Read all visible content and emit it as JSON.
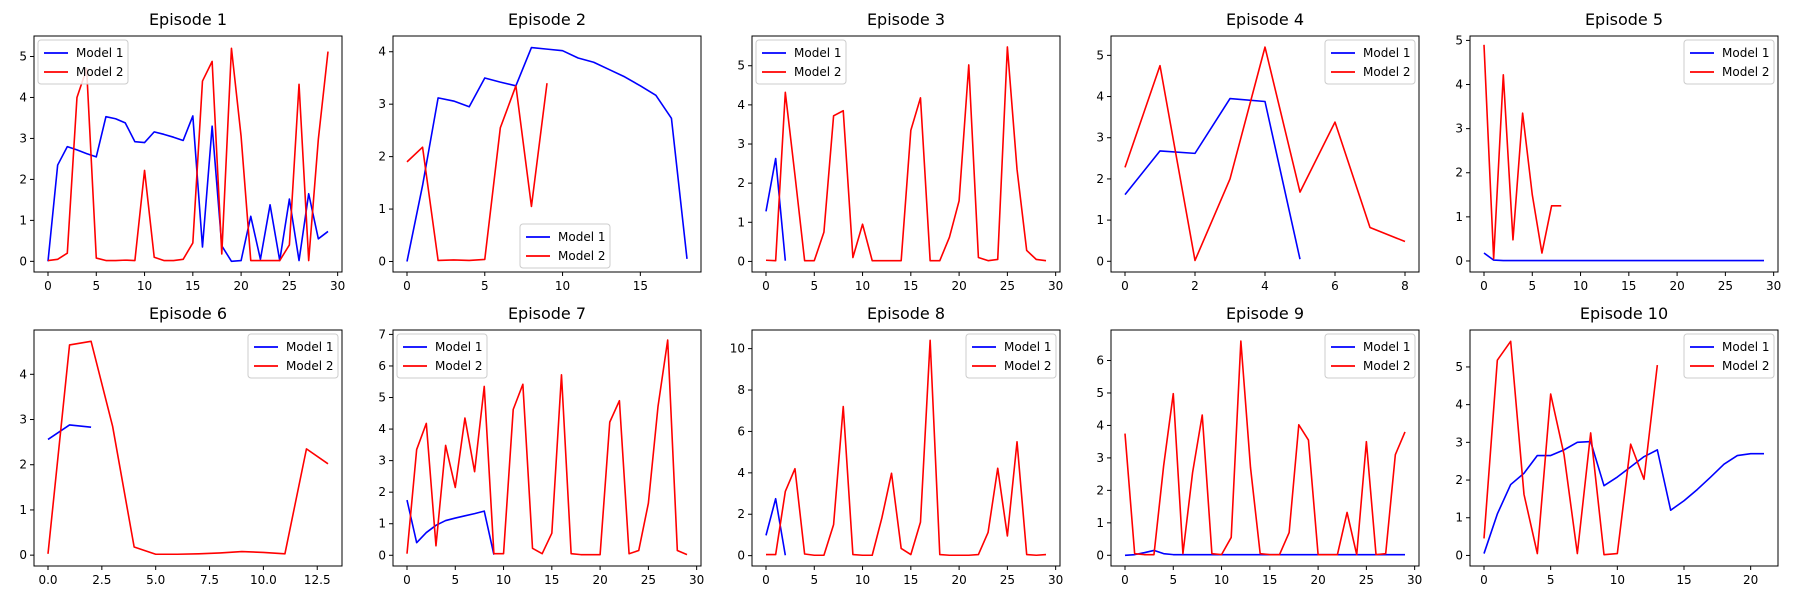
{
  "chart_data": [
    {
      "type": "line",
      "title": "Episode 1",
      "xlabel": "",
      "ylabel": "",
      "xlim": [
        -1.45,
        30.45
      ],
      "ylim": [
        -0.26,
        5.5
      ],
      "xticks": [
        0,
        5,
        10,
        15,
        20,
        25,
        30
      ],
      "yticks": [
        0,
        1,
        2,
        3,
        4,
        5
      ],
      "legend": "upper left",
      "grid": false,
      "series": [
        {
          "name": "Model 1",
          "color": "#0000ff",
          "x": [
            0,
            1,
            2,
            3,
            4,
            5,
            6,
            7,
            8,
            9,
            10,
            11,
            12,
            13,
            14,
            15,
            16,
            17,
            18,
            19,
            20,
            21,
            22,
            23,
            24,
            25,
            26,
            27,
            28,
            29
          ],
          "y": [
            0,
            2.35,
            2.8,
            2.72,
            2.63,
            2.55,
            3.53,
            3.48,
            3.38,
            2.92,
            2.9,
            3.16,
            3.1,
            3.03,
            2.95,
            3.55,
            0.35,
            3.3,
            0.38,
            0,
            0.02,
            1.1,
            0.05,
            1.38,
            0.02,
            1.52,
            0.02,
            1.65,
            0.55,
            0.73
          ]
        },
        {
          "name": "Model 2",
          "color": "#ff0000",
          "x": [
            0,
            1,
            2,
            3,
            4,
            5,
            6,
            7,
            8,
            9,
            10,
            11,
            12,
            13,
            14,
            15,
            16,
            17,
            18,
            19,
            20,
            21,
            22,
            23,
            24,
            25,
            26,
            27,
            28,
            29
          ],
          "y": [
            0.02,
            0.05,
            0.2,
            4,
            4.7,
            0.08,
            0.02,
            0.02,
            0.03,
            0.02,
            2.22,
            0.1,
            0.02,
            0.02,
            0.05,
            0.45,
            4.4,
            4.88,
            0.18,
            5.2,
            3.05,
            0.02,
            0.02,
            0.02,
            0.02,
            0.4,
            4.32,
            0.02,
            2.98,
            5.12
          ]
        }
      ]
    },
    {
      "type": "line",
      "title": "Episode 2",
      "xlabel": "",
      "ylabel": "",
      "xlim": [
        -0.9,
        18.9
      ],
      "ylim": [
        -0.2,
        4.3
      ],
      "xticks": [
        0,
        5,
        10,
        15
      ],
      "yticks": [
        0,
        1,
        2,
        3,
        4
      ],
      "legend": "lower center",
      "grid": false,
      "series": [
        {
          "name": "Model 1",
          "color": "#0000ff",
          "x": [
            0,
            1,
            2,
            3,
            4,
            5,
            6,
            7,
            8,
            9,
            10,
            11,
            12,
            13,
            14,
            15,
            16,
            17,
            18
          ],
          "y": [
            0,
            1.45,
            3.12,
            3.06,
            2.95,
            3.5,
            3.42,
            3.35,
            4.08,
            4.05,
            4.02,
            3.88,
            3.8,
            3.66,
            3.52,
            3.35,
            3.17,
            2.73,
            0.05
          ]
        },
        {
          "name": "Model 2",
          "color": "#ff0000",
          "x": [
            0,
            1,
            2,
            3,
            4,
            5,
            6,
            7,
            8,
            9
          ],
          "y": [
            1.9,
            2.18,
            0.02,
            0.03,
            0.02,
            0.04,
            2.55,
            3.35,
            1.05,
            3.4
          ]
        }
      ]
    },
    {
      "type": "line",
      "title": "Episode 3",
      "xlabel": "",
      "ylabel": "",
      "xlim": [
        -1.45,
        30.45
      ],
      "ylim": [
        -0.27,
        5.76
      ],
      "xticks": [
        0,
        5,
        10,
        15,
        20,
        25,
        30
      ],
      "yticks": [
        0,
        1,
        2,
        3,
        4,
        5
      ],
      "legend": "upper left",
      "grid": false,
      "series": [
        {
          "name": "Model 1",
          "color": "#0000ff",
          "x": [
            0,
            1,
            2
          ],
          "y": [
            1.28,
            2.63,
            0.02
          ]
        },
        {
          "name": "Model 2",
          "color": "#ff0000",
          "x": [
            0,
            1,
            2,
            3,
            4,
            5,
            6,
            7,
            8,
            9,
            10,
            11,
            12,
            13,
            14,
            15,
            16,
            17,
            18,
            19,
            20,
            21,
            22,
            23,
            24,
            25,
            26,
            27,
            28,
            29
          ],
          "y": [
            0.03,
            0.02,
            4.32,
            2.2,
            0.02,
            0.02,
            0.75,
            3.72,
            3.85,
            0.1,
            0.95,
            0.02,
            0.02,
            0.02,
            0.02,
            3.35,
            4.18,
            0.02,
            0.02,
            0.62,
            1.55,
            5.02,
            0.1,
            0.02,
            0.05,
            5.48,
            2.35,
            0.28,
            0.05,
            0.02
          ]
        }
      ]
    },
    {
      "type": "line",
      "title": "Episode 4",
      "xlabel": "",
      "ylabel": "",
      "xlim": [
        -0.4,
        8.4
      ],
      "ylim": [
        -0.26,
        5.47
      ],
      "xticks": [
        0,
        2,
        4,
        6,
        8
      ],
      "yticks": [
        0,
        1,
        2,
        3,
        4,
        5
      ],
      "legend": "upper right",
      "grid": false,
      "series": [
        {
          "name": "Model 1",
          "color": "#0000ff",
          "x": [
            0,
            1,
            2,
            3,
            4,
            5
          ],
          "y": [
            1.62,
            2.68,
            2.62,
            3.95,
            3.88,
            0.05
          ]
        },
        {
          "name": "Model 2",
          "color": "#ff0000",
          "x": [
            0,
            1,
            2,
            3,
            4,
            5,
            6,
            7,
            8
          ],
          "y": [
            2.28,
            4.75,
            0.02,
            2.0,
            5.2,
            1.68,
            3.38,
            0.82,
            0.48
          ]
        }
      ]
    },
    {
      "type": "line",
      "title": "Episode 5",
      "xlabel": "",
      "ylabel": "",
      "xlim": [
        -1.45,
        30.45
      ],
      "ylim": [
        -0.25,
        5.1
      ],
      "xticks": [
        0,
        5,
        10,
        15,
        20,
        25,
        30
      ],
      "yticks": [
        0,
        1,
        2,
        3,
        4,
        5
      ],
      "legend": "upper right",
      "grid": false,
      "series": [
        {
          "name": "Model 1",
          "color": "#0000ff",
          "x": [
            0,
            1,
            2,
            3,
            4,
            5,
            6,
            7,
            8,
            9,
            10,
            11,
            12,
            13,
            14,
            15,
            16,
            17,
            18,
            19,
            20,
            21,
            22,
            23,
            24,
            25,
            26,
            27,
            28,
            29
          ],
          "y": [
            0.18,
            0.02,
            0.01,
            0.01,
            0.01,
            0.01,
            0.01,
            0.01,
            0.01,
            0.01,
            0.01,
            0.01,
            0.01,
            0.01,
            0.01,
            0.01,
            0.01,
            0.01,
            0.01,
            0.01,
            0.01,
            0.01,
            0.01,
            0.01,
            0.01,
            0.01,
            0.01,
            0.01,
            0.01,
            0.01
          ]
        },
        {
          "name": "Model 2",
          "color": "#ff0000",
          "x": [
            0,
            1,
            2,
            3,
            4,
            5,
            6,
            7,
            8
          ],
          "y": [
            4.9,
            0.05,
            4.22,
            0.48,
            3.35,
            1.5,
            0.18,
            1.25,
            1.25
          ]
        }
      ]
    },
    {
      "type": "line",
      "title": "Episode 6",
      "xlabel": "",
      "ylabel": "",
      "xlim": [
        -0.65,
        13.65
      ],
      "ylim": [
        -0.24,
        4.98
      ],
      "xticks": [
        0.0,
        2.5,
        5.0,
        7.5,
        10.0,
        12.5
      ],
      "yticks": [
        0,
        1,
        2,
        3,
        4
      ],
      "legend": "upper right",
      "grid": false,
      "series": [
        {
          "name": "Model 1",
          "color": "#0000ff",
          "x": [
            0,
            1,
            2
          ],
          "y": [
            2.56,
            2.88,
            2.83
          ]
        },
        {
          "name": "Model 2",
          "color": "#ff0000",
          "x": [
            0,
            1,
            2,
            3,
            4,
            5,
            6,
            7,
            8,
            9,
            10,
            11,
            12,
            13
          ],
          "y": [
            0.03,
            4.65,
            4.73,
            2.85,
            0.18,
            0.02,
            0.02,
            0.03,
            0.05,
            0.08,
            0.06,
            0.03,
            2.35,
            2.02
          ]
        }
      ]
    },
    {
      "type": "line",
      "title": "Episode 7",
      "xlabel": "",
      "ylabel": "",
      "xlim": [
        -1.45,
        30.45
      ],
      "ylim": [
        -0.34,
        7.14
      ],
      "xticks": [
        0,
        5,
        10,
        15,
        20,
        25,
        30
      ],
      "yticks": [
        0,
        1,
        2,
        3,
        4,
        5,
        6,
        7
      ],
      "legend": "upper left",
      "grid": false,
      "series": [
        {
          "name": "Model 1",
          "color": "#0000ff",
          "x": [
            0,
            1,
            2,
            3,
            4,
            5,
            6,
            7,
            8,
            9
          ],
          "y": [
            1.75,
            0.4,
            0.72,
            0.95,
            1.1,
            1.18,
            1.25,
            1.32,
            1.4,
            0.02
          ]
        },
        {
          "name": "Model 2",
          "color": "#ff0000",
          "x": [
            0,
            1,
            2,
            3,
            4,
            5,
            6,
            7,
            8,
            9,
            10,
            11,
            12,
            13,
            14,
            15,
            16,
            17,
            18,
            19,
            20,
            21,
            22,
            23,
            24,
            25,
            26,
            27,
            28,
            29
          ],
          "y": [
            0.05,
            3.35,
            4.18,
            0.3,
            3.48,
            2.15,
            4.35,
            2.65,
            5.35,
            0.05,
            0.05,
            4.62,
            5.42,
            0.22,
            0.05,
            0.7,
            5.72,
            0.05,
            0.02,
            0.02,
            0.02,
            4.22,
            4.9,
            0.05,
            0.15,
            1.65,
            4.72,
            6.82,
            0.15,
            0.02
          ]
        }
      ]
    },
    {
      "type": "line",
      "title": "Episode 8",
      "xlabel": "",
      "ylabel": "",
      "xlim": [
        -1.45,
        30.45
      ],
      "ylim": [
        -0.5,
        10.9
      ],
      "xticks": [
        0,
        5,
        10,
        15,
        20,
        25,
        30
      ],
      "yticks": [
        0,
        2,
        4,
        6,
        8,
        10
      ],
      "legend": "upper right",
      "grid": false,
      "series": [
        {
          "name": "Model 1",
          "color": "#0000ff",
          "x": [
            0,
            1,
            2
          ],
          "y": [
            0.98,
            2.75,
            0.02
          ]
        },
        {
          "name": "Model 2",
          "color": "#ff0000",
          "x": [
            0,
            1,
            2,
            3,
            4,
            5,
            6,
            7,
            8,
            9,
            10,
            11,
            12,
            13,
            14,
            15,
            16,
            17,
            18,
            19,
            20,
            21,
            22,
            23,
            24,
            25,
            26,
            27,
            28,
            29
          ],
          "y": [
            0.05,
            0.05,
            3.1,
            4.2,
            0.08,
            0.02,
            0.02,
            1.5,
            7.2,
            0.05,
            0.02,
            0.02,
            1.82,
            3.98,
            0.35,
            0.05,
            1.62,
            10.4,
            0.05,
            0.02,
            0.02,
            0.02,
            0.05,
            1.12,
            4.22,
            0.95,
            5.5,
            0.05,
            0.02,
            0.05
          ]
        }
      ]
    },
    {
      "type": "line",
      "title": "Episode 9",
      "xlabel": "",
      "ylabel": "",
      "xlim": [
        -1.45,
        30.45
      ],
      "ylim": [
        -0.33,
        6.94
      ],
      "xticks": [
        0,
        5,
        10,
        15,
        20,
        25,
        30
      ],
      "yticks": [
        0,
        1,
        2,
        3,
        4,
        5,
        6
      ],
      "legend": "upper right",
      "grid": false,
      "series": [
        {
          "name": "Model 1",
          "color": "#0000ff",
          "x": [
            0,
            1,
            2,
            3,
            4,
            5,
            6,
            7,
            8,
            9,
            10,
            11,
            12,
            13,
            14,
            15,
            16,
            17,
            18,
            19,
            20,
            21,
            22,
            23,
            24,
            25,
            26,
            27,
            28,
            29
          ],
          "y": [
            0,
            0.02,
            0.08,
            0.15,
            0.05,
            0.02,
            0.02,
            0.02,
            0.02,
            0.02,
            0.02,
            0.02,
            0.02,
            0.02,
            0.02,
            0.02,
            0.02,
            0.02,
            0.02,
            0.02,
            0.02,
            0.02,
            0.02,
            0.02,
            0.02,
            0.02,
            0.02,
            0.02,
            0.02,
            0.02
          ]
        },
        {
          "name": "Model 2",
          "color": "#ff0000",
          "x": [
            0,
            1,
            2,
            3,
            4,
            5,
            6,
            7,
            8,
            9,
            10,
            11,
            12,
            13,
            14,
            15,
            16,
            17,
            18,
            19,
            20,
            21,
            22,
            23,
            24,
            25,
            26,
            27,
            28,
            29
          ],
          "y": [
            3.75,
            0.05,
            0.02,
            0.02,
            2.75,
            4.98,
            0.05,
            2.55,
            4.32,
            0.05,
            0.02,
            0.55,
            6.6,
            2.7,
            0.05,
            0.02,
            0.02,
            0.7,
            4.02,
            3.55,
            0.02,
            0.02,
            0.02,
            1.32,
            0.02,
            3.5,
            0.02,
            0.05,
            3.1,
            3.8
          ]
        }
      ]
    },
    {
      "type": "line",
      "title": "Episode 10",
      "xlabel": "",
      "ylabel": "",
      "xlim": [
        -1.05,
        22.05
      ],
      "ylim": [
        -0.28,
        5.98
      ],
      "xticks": [
        0,
        5,
        10,
        15,
        20
      ],
      "yticks": [
        0,
        1,
        2,
        3,
        4,
        5
      ],
      "legend": "upper right",
      "grid": false,
      "series": [
        {
          "name": "Model 1",
          "color": "#0000ff",
          "x": [
            0,
            1,
            2,
            3,
            4,
            5,
            6,
            7,
            8,
            9,
            10,
            11,
            12,
            13,
            14,
            15,
            16,
            17,
            18,
            19,
            20,
            21
          ],
          "y": [
            0.05,
            1.1,
            1.88,
            2.18,
            2.65,
            2.65,
            2.8,
            3.0,
            3.02,
            1.85,
            2.08,
            2.35,
            2.62,
            2.8,
            1.2,
            1.45,
            1.75,
            2.08,
            2.42,
            2.65,
            2.7,
            2.7
          ]
        },
        {
          "name": "Model 2",
          "color": "#ff0000",
          "x": [
            0,
            1,
            2,
            3,
            4,
            5,
            6,
            7,
            8,
            9,
            10,
            11,
            12,
            13
          ],
          "y": [
            0.45,
            5.18,
            5.68,
            1.62,
            0.05,
            4.28,
            2.68,
            0.05,
            3.25,
            0.02,
            0.05,
            2.95,
            2.02,
            5.05
          ]
        }
      ]
    }
  ]
}
